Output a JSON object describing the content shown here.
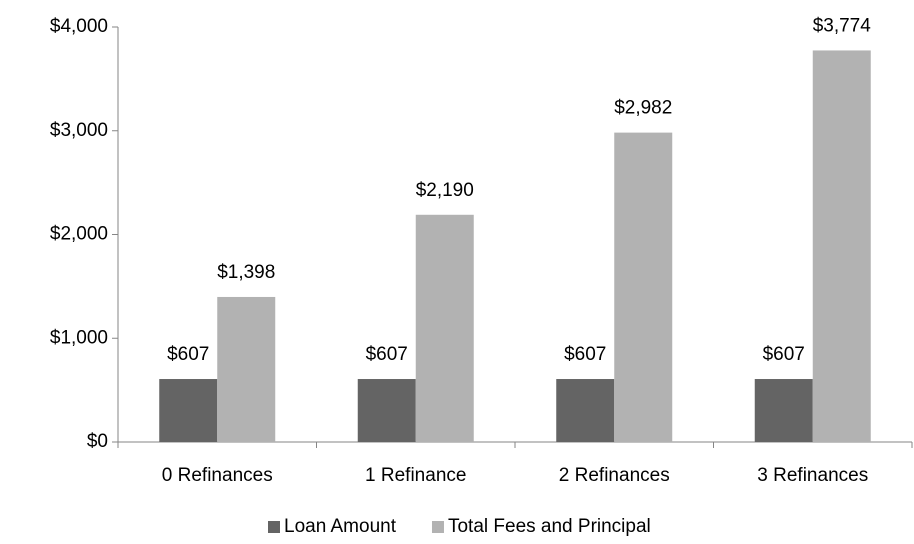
{
  "chart_data": {
    "type": "bar",
    "categories": [
      "0 Refinances",
      "1 Refinance",
      "2 Refinances",
      "3 Refinances"
    ],
    "series": [
      {
        "name": "Loan Amount",
        "color": "#646464",
        "values": [
          607,
          607,
          607,
          607
        ],
        "value_labels": [
          "$607",
          "$607",
          "$607",
          "$607"
        ]
      },
      {
        "name": "Total Fees and Principal",
        "color": "#b2b2b2",
        "values": [
          1398,
          2190,
          2982,
          3774
        ],
        "value_labels": [
          "$1,398",
          "$2,190",
          "$2,982",
          "$3,774"
        ]
      }
    ],
    "ylim": [
      0,
      4000
    ],
    "yticks": [
      {
        "value": 0,
        "label": "$0"
      },
      {
        "value": 1000,
        "label": "$1,000"
      },
      {
        "value": 2000,
        "label": "$2,000"
      },
      {
        "value": 3000,
        "label": "$3,000"
      },
      {
        "value": 4000,
        "label": "$4,000"
      }
    ],
    "grid": false,
    "legend": "bottom"
  }
}
